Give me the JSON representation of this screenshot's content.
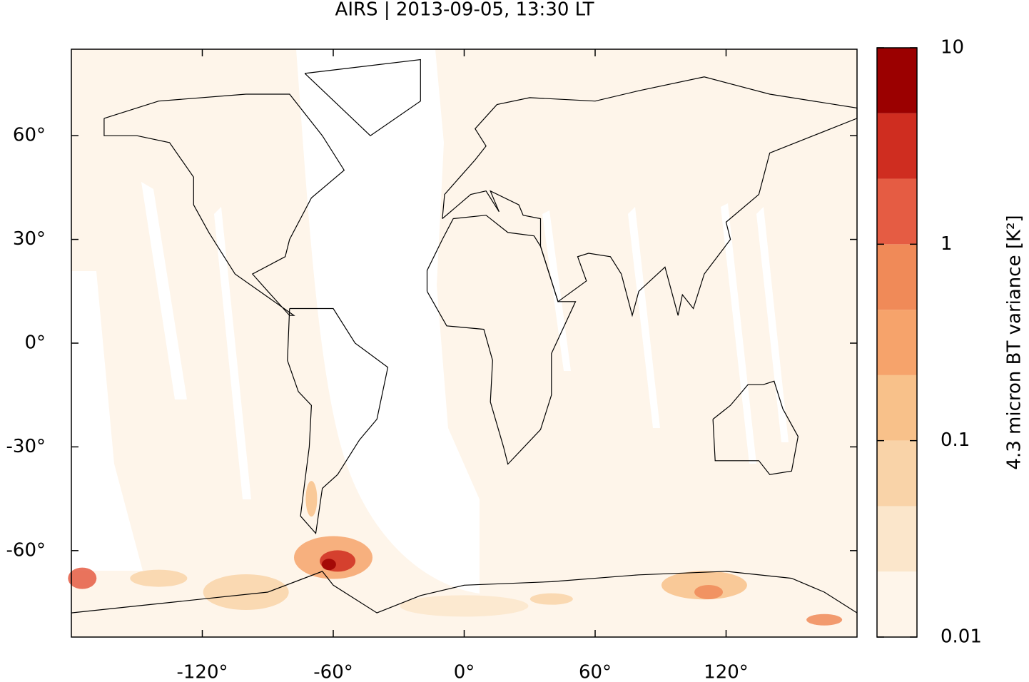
{
  "chart_data": {
    "type": "map",
    "title": "AIRS | 2013-09-05, 13:30 LT",
    "xlim": [
      -180,
      180
    ],
    "ylim": [
      -85,
      85
    ],
    "xticks": [
      {
        "value": -120,
        "label": "-120°"
      },
      {
        "value": -60,
        "label": "-60°"
      },
      {
        "value": 0,
        "label": "0°"
      },
      {
        "value": 60,
        "label": "60°"
      },
      {
        "value": 120,
        "label": "120°"
      }
    ],
    "yticks": [
      {
        "value": -60,
        "label": "-60°"
      },
      {
        "value": -30,
        "label": "-30°"
      },
      {
        "value": 0,
        "label": "0°"
      },
      {
        "value": 30,
        "label": "30°"
      },
      {
        "value": 60,
        "label": "60°"
      }
    ],
    "colorbar": {
      "label": "4.3 micron BT variance [K²]",
      "log": true,
      "lim": [
        0.01,
        10
      ],
      "ticks": [
        0.01,
        0.1,
        1,
        10
      ],
      "colors": [
        "#fef5ea",
        "#fbe6cb",
        "#f9d3a8",
        "#f8c18a",
        "#f6a36b",
        "#f08a58",
        "#e55c43",
        "#cf2d20",
        "#9b0000"
      ]
    }
  }
}
